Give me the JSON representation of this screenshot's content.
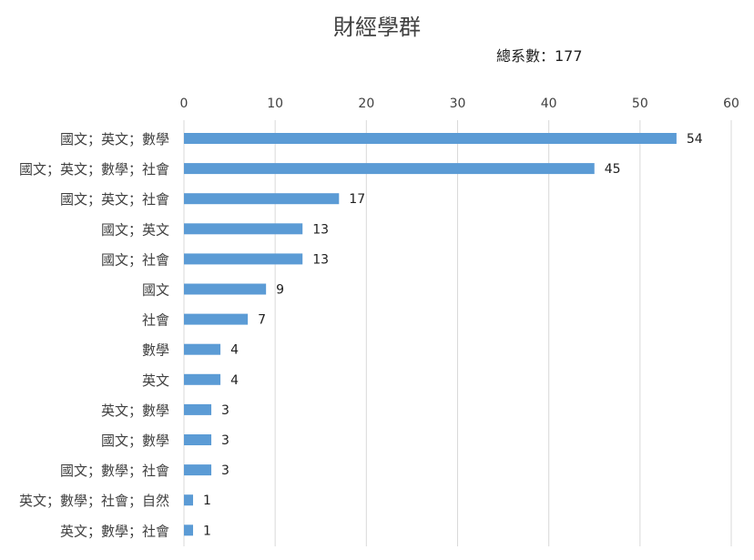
{
  "chart_data": {
    "type": "bar",
    "orientation": "horizontal",
    "title": "財經學群",
    "subtitle": "總系數：177",
    "xlabel": "",
    "ylabel": "",
    "xlim": [
      0,
      60
    ],
    "x_ticks": [
      0,
      10,
      20,
      30,
      40,
      50,
      60
    ],
    "x_axis_position": "top",
    "grid": true,
    "legend": "none",
    "bar_color": "#5b9bd5",
    "categories": [
      "國文；英文；數學",
      "國文；英文；數學；社會",
      "國文；英文；社會",
      "國文；英文",
      "國文；社會",
      "國文",
      "社會",
      "數學",
      "英文",
      "英文；數學",
      "國文；數學",
      "國文；數學；社會",
      "英文；數學；社會；自然",
      "英文；數學；社會"
    ],
    "values": [
      54,
      45,
      17,
      13,
      13,
      9,
      7,
      4,
      4,
      3,
      3,
      3,
      1,
      1
    ],
    "data_labels": true
  }
}
